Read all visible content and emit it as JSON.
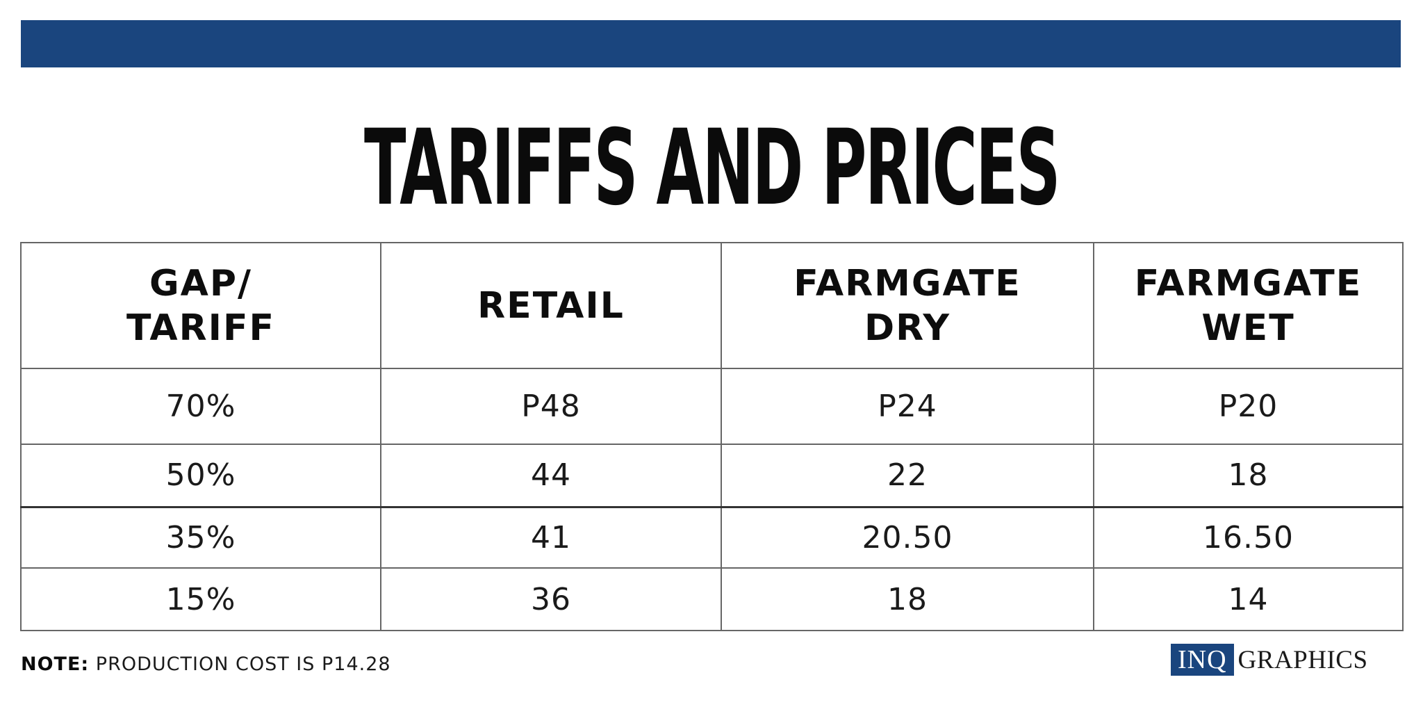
{
  "colors": {
    "brand_blue": "#1a457e",
    "text": "#111111",
    "grid": "#666666"
  },
  "chart_data": {
    "type": "table",
    "title": "TARIFFS AND PRICES",
    "columns": [
      {
        "line1": "GAP/",
        "line2": "TARIFF"
      },
      {
        "line1": "RETAIL",
        "line2": ""
      },
      {
        "line1": "FARMGATE",
        "line2": "DRY"
      },
      {
        "line1": "FARMGATE",
        "line2": "WET"
      }
    ],
    "rows": [
      [
        "70%",
        "P48",
        "P24",
        "P20"
      ],
      [
        "50%",
        "44",
        "22",
        "18"
      ],
      [
        "35%",
        "41",
        "20.50",
        "16.50"
      ],
      [
        "15%",
        "36",
        "18",
        "14"
      ]
    ]
  },
  "footer": {
    "note_label": "NOTE:",
    "note_text": " PRODUCTION COST IS P14.28",
    "credit_brand": "INQ",
    "credit_text": "GRAPHICS"
  }
}
